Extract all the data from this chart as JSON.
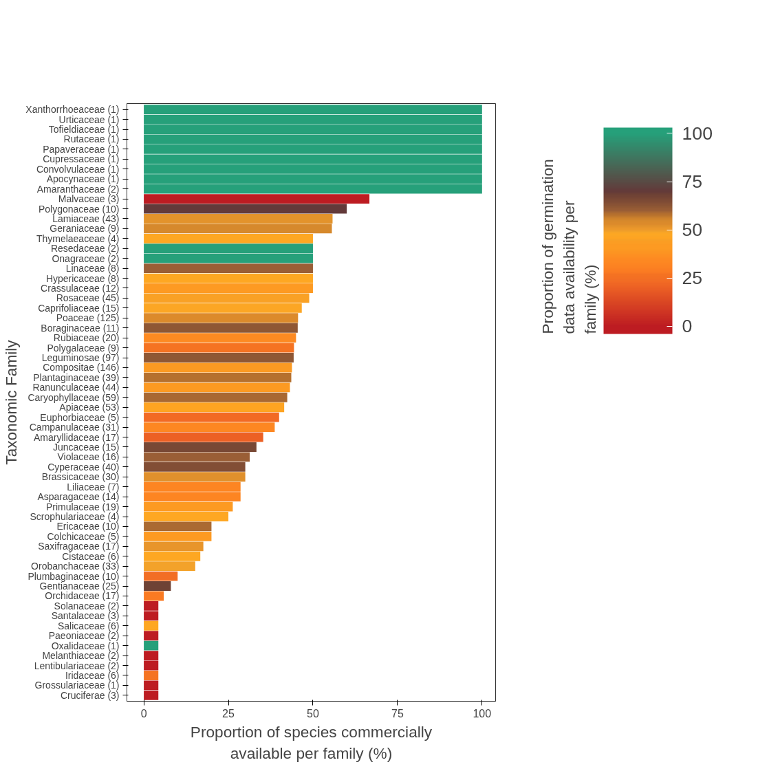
{
  "chart_data": {
    "type": "bar",
    "orientation": "horizontal",
    "xlabel": "Proportion of species commercially available per family (%)",
    "ylabel": "Taxonomic Family",
    "clabel": "Proportion of germination data availability per family (%)",
    "categories": [
      "Xanthorrhoeaceae (1)",
      "Urticaceae (1)",
      "Tofieldiaceae (1)",
      "Rutaceae (1)",
      "Papaveraceae (1)",
      "Cupressaceae (1)",
      "Convolvulaceae (1)",
      "Apocynaceae (1)",
      "Amaranthaceae (2)",
      "Malvaceae (3)",
      "Polygonaceae (10)",
      "Lamiaceae (43)",
      "Geraniaceae (9)",
      "Thymelaeaceae (4)",
      "Resedaceae (2)",
      "Onagraceae (2)",
      "Linaceae (8)",
      "Hypericaceae (8)",
      "Crassulaceae (12)",
      "Rosaceae (45)",
      "Caprifoliaceae (15)",
      "Poaceae (125)",
      "Boraginaceae (11)",
      "Rubiaceae (20)",
      "Polygalaceae (9)",
      "Leguminosae (97)",
      "Compositae (146)",
      "Plantaginaceae (39)",
      "Ranunculaceae (44)",
      "Caryophyllaceae (59)",
      "Apiaceae (53)",
      "Euphorbiaceae (5)",
      "Campanulaceae (31)",
      "Amaryllidaceae (17)",
      "Juncaceae (15)",
      "Violaceae (16)",
      "Cyperaceae (40)",
      "Brassicaceae (30)",
      "Liliaceae (7)",
      "Asparagaceae (14)",
      "Primulaceae (19)",
      "Scrophulariaceae (4)",
      "Ericaceae (10)",
      "Colchicaceae (5)",
      "Saxifragaceae (17)",
      "Cistaceae (6)",
      "Orobanchaceae (33)",
      "Plumbaginaceae (10)",
      "Gentianaceae (25)",
      "Orchidaceae (17)",
      "Solanaceae (2)",
      "Santalaceae (3)",
      "Salicaceae (6)",
      "Paeoniaceae (2)",
      "Oxalidaceae (1)",
      "Melanthiaceae (2)",
      "Lentibulariaceae (2)",
      "Iridaceae (6)",
      "Grossulariaceae (1)",
      "Cruciferae (3)"
    ],
    "values": [
      100,
      100,
      100,
      100,
      100,
      100,
      100,
      100,
      100,
      66.7,
      60,
      55.8,
      55.6,
      50,
      50,
      50,
      50,
      50,
      50,
      48.9,
      46.7,
      45.6,
      45.5,
      45,
      44.4,
      44.3,
      43.8,
      43.6,
      43.2,
      42.4,
      41.5,
      40,
      38.7,
      35.3,
      33.3,
      31.3,
      30,
      30,
      28.6,
      28.6,
      26.3,
      25,
      20,
      20,
      17.6,
      16.7,
      15.2,
      10,
      8,
      5.9,
      4.3,
      4.3,
      4.3,
      4.3,
      4.3,
      4.3,
      4.3,
      4.3,
      4.3,
      4.3
    ],
    "colors": [
      "#26a07a",
      "#26a07a",
      "#26a07a",
      "#26a07a",
      "#26a07a",
      "#26a07a",
      "#26a07a",
      "#26a07a",
      "#26a07a",
      "#bd1c22",
      "#633a3a",
      "#e3932b",
      "#d6892c",
      "#fea722",
      "#26a07a",
      "#26a07a",
      "#9a5e36",
      "#fea722",
      "#fd9a22",
      "#f9a125",
      "#fca624",
      "#dc8a2b",
      "#8f5734",
      "#fd8a22",
      "#f57322",
      "#8f5734",
      "#fc9a22",
      "#b5702e",
      "#fc9a22",
      "#a86832",
      "#fea422",
      "#f26a24",
      "#fd8722",
      "#ec6024",
      "#784835",
      "#9a5e36",
      "#824e35",
      "#e0902c",
      "#fd8522",
      "#fd8522",
      "#fd9a22",
      "#fea722",
      "#aa6a32",
      "#fd9a22",
      "#e8952b",
      "#fea722",
      "#f3a22a",
      "#f26e24",
      "#6e4235",
      "#fa7a22",
      "#bd1c22",
      "#bd1c22",
      "#fea722",
      "#bd1c22",
      "#26a07a",
      "#bd1c22",
      "#bd1c22",
      "#f57322",
      "#bd1c22",
      "#bd1c22"
    ],
    "cvalues": [
      100,
      100,
      100,
      100,
      100,
      100,
      100,
      100,
      100,
      0,
      70,
      52,
      55,
      48,
      100,
      100,
      60,
      48,
      42,
      45,
      47,
      53,
      62,
      35,
      27,
      62,
      40,
      58,
      40,
      59,
      46,
      23,
      33,
      20,
      66,
      60,
      64,
      52,
      32,
      32,
      40,
      48,
      59,
      40,
      51,
      48,
      49,
      24,
      68,
      28,
      0,
      0,
      48,
      0,
      100,
      0,
      0,
      27,
      0,
      0
    ],
    "xlim": [
      -5,
      104
    ],
    "xticks": [
      0,
      25,
      50,
      75,
      100
    ],
    "clim": [
      -4,
      103
    ],
    "cticks": [
      0,
      25,
      50,
      75,
      100
    ],
    "grid": false
  }
}
